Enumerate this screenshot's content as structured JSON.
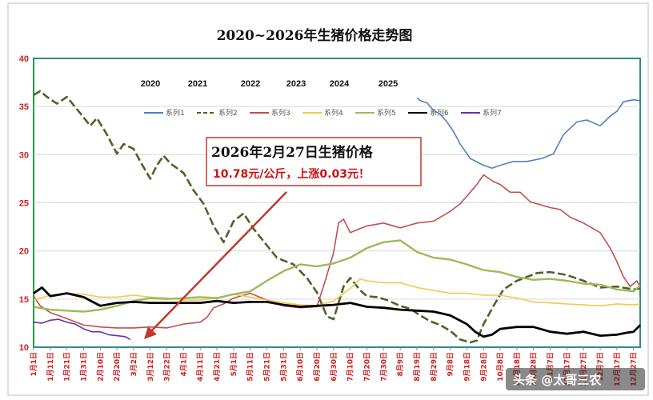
{
  "chart_data": {
    "type": "line",
    "title": "2020~2026年生猪价格走势图",
    "ylim": [
      10,
      40
    ],
    "y_ticks": [
      10,
      15,
      20,
      25,
      30,
      35,
      40
    ],
    "x_tick_labels": [
      "1月1日",
      "1月11日",
      "1月21日",
      "1月31日",
      "2月10日",
      "2月20日",
      "3月2日",
      "3月12日",
      "3月22日",
      "4月1日",
      "4月11日",
      "4月21日",
      "5月1日",
      "5月11日",
      "5月21日",
      "5月31日",
      "6月10日",
      "6月20日",
      "6月30日",
      "7月10日",
      "7月20日",
      "7月30日",
      "8月9日",
      "8月19日",
      "8月29日",
      "9月8日",
      "9月18日",
      "9月28日",
      "10月8日",
      "10月18日",
      "10月28日",
      "11月7日",
      "11月17日",
      "11月27日",
      "12月7日",
      "12月17日",
      "12月27日"
    ],
    "year_labels": [
      "2020",
      "2021",
      "2022",
      "2023",
      "2024",
      "2025"
    ],
    "legend": [
      "系列1",
      "系列2",
      "系列3",
      "系列4",
      "系列5",
      "系列6",
      "系列7"
    ],
    "series": [
      {
        "name": "系列1",
        "color": "#4f81bd",
        "dash": "solid",
        "x": [
          230,
          232,
          236,
          240,
          244,
          248,
          252,
          256,
          262,
          270,
          275,
          280,
          288,
          296,
          305,
          312,
          318,
          326,
          332,
          340,
          346,
          350,
          354,
          360,
          364
        ],
        "y": [
          35.9,
          35.6,
          35.4,
          34.6,
          34.2,
          33.4,
          32.4,
          31.1,
          29.6,
          28.9,
          28.6,
          28.9,
          29.3,
          29.3,
          29.6,
          30.1,
          32.1,
          33.4,
          33.6,
          33.0,
          34.0,
          34.5,
          35.5,
          35.7,
          35.6
        ]
      },
      {
        "name": "系列2",
        "color": "#4f6228",
        "dash": "dash",
        "x": [
          0,
          4,
          8,
          14,
          20,
          28,
          34,
          38,
          44,
          50,
          54,
          60,
          64,
          70,
          74,
          78,
          82,
          90,
          96,
          102,
          108,
          114,
          120,
          126,
          132,
          138,
          146,
          150,
          156,
          160,
          164,
          170,
          176,
          180,
          186,
          190,
          196,
          200,
          206,
          212,
          220,
          226,
          232,
          238,
          244,
          250,
          256,
          262,
          266,
          270,
          276,
          282,
          290,
          296,
          302,
          310,
          320,
          330,
          340,
          350,
          360,
          364
        ],
        "y": [
          36.2,
          36.6,
          36.0,
          35.3,
          36.0,
          34.3,
          33.0,
          33.8,
          32.1,
          30.1,
          31.1,
          30.6,
          29.3,
          27.5,
          28.9,
          29.9,
          29.1,
          28.1,
          26.3,
          24.9,
          22.6,
          20.9,
          23.1,
          23.9,
          22.3,
          21.0,
          19.3,
          19.0,
          18.6,
          17.9,
          17.2,
          15.7,
          13.2,
          12.9,
          16.3,
          17.2,
          15.9,
          15.3,
          15.2,
          14.9,
          14.3,
          14.0,
          13.3,
          12.7,
          12.3,
          11.7,
          10.8,
          10.5,
          10.7,
          12.4,
          14.3,
          16.0,
          16.9,
          17.3,
          17.7,
          17.8,
          17.5,
          16.9,
          16.2,
          16.3,
          16.0,
          16.1
        ]
      },
      {
        "name": "系列3",
        "color": "#c0504d",
        "dash": "solid",
        "x": [
          0,
          4,
          10,
          18,
          24,
          30,
          40,
          50,
          60,
          70,
          80,
          90,
          100,
          104,
          108,
          114,
          120,
          130,
          140,
          150,
          160,
          170,
          175,
          180,
          183,
          186,
          190,
          200,
          210,
          220,
          230,
          240,
          250,
          256,
          262,
          266,
          270,
          276,
          280,
          286,
          292,
          298,
          304,
          310,
          316,
          322,
          330,
          340,
          346,
          350,
          354,
          358,
          362,
          364
        ],
        "y": [
          15.3,
          14.3,
          13.6,
          13.1,
          12.7,
          12.3,
          12.1,
          12.0,
          12.0,
          12.1,
          12.0,
          12.4,
          12.6,
          13.1,
          14.1,
          14.5,
          15.1,
          15.6,
          14.9,
          14.3,
          14.1,
          14.2,
          16.9,
          19.8,
          22.9,
          23.3,
          21.9,
          22.6,
          22.9,
          22.4,
          22.9,
          23.1,
          24.1,
          24.9,
          26.1,
          26.9,
          27.9,
          27.2,
          26.9,
          26.1,
          26.1,
          25.1,
          24.8,
          24.5,
          24.3,
          23.5,
          22.9,
          21.9,
          20.3,
          18.9,
          17.3,
          16.3,
          16.9,
          16.3
        ]
      },
      {
        "name": "系列4",
        "color": "#f2c94c",
        "dash": "solid",
        "x": [
          0,
          10,
          20,
          30,
          40,
          50,
          60,
          70,
          80,
          90,
          100,
          110,
          120,
          130,
          140,
          150,
          160,
          170,
          180,
          190,
          196,
          200,
          210,
          220,
          230,
          240,
          250,
          260,
          270,
          280,
          290,
          300,
          310,
          320,
          330,
          340,
          350,
          360,
          364
        ],
        "y": [
          14.9,
          15.4,
          15.6,
          15.5,
          15.2,
          15.2,
          15.4,
          15.2,
          15.1,
          14.9,
          14.9,
          15.1,
          15.5,
          15.2,
          14.9,
          14.6,
          14.4,
          14.3,
          14.8,
          16.1,
          17.1,
          16.9,
          16.7,
          16.7,
          16.2,
          15.9,
          15.6,
          15.6,
          15.4,
          15.4,
          15.1,
          14.7,
          14.6,
          14.5,
          14.4,
          14.3,
          14.5,
          14.4,
          14.5
        ]
      },
      {
        "name": "系列5",
        "color": "#9bbb59",
        "dash": "solid",
        "x": [
          0,
          10,
          20,
          30,
          40,
          50,
          60,
          70,
          80,
          90,
          100,
          110,
          120,
          130,
          140,
          150,
          160,
          170,
          180,
          190,
          200,
          210,
          220,
          230,
          240,
          250,
          260,
          270,
          280,
          290,
          300,
          310,
          320,
          330,
          340,
          350,
          360,
          364
        ],
        "y": [
          14.2,
          13.9,
          13.8,
          13.7,
          13.9,
          14.3,
          14.8,
          15.1,
          15.0,
          15.1,
          15.2,
          15.1,
          15.5,
          15.8,
          16.9,
          17.9,
          18.6,
          18.4,
          18.7,
          19.3,
          20.3,
          20.9,
          21.1,
          19.9,
          19.3,
          19.1,
          18.6,
          18.0,
          17.8,
          17.3,
          17.0,
          17.1,
          16.9,
          16.6,
          16.5,
          16.0,
          15.8,
          16.4
        ]
      },
      {
        "name": "系列6",
        "color": "#000000",
        "dash": "solid",
        "x": [
          0,
          5,
          10,
          20,
          30,
          40,
          50,
          60,
          70,
          80,
          90,
          100,
          110,
          120,
          130,
          140,
          150,
          160,
          170,
          180,
          190,
          200,
          210,
          220,
          230,
          240,
          250,
          260,
          265,
          270,
          275,
          280,
          290,
          300,
          310,
          320,
          330,
          340,
          350,
          356,
          360,
          364
        ],
        "y": [
          15.6,
          16.2,
          15.3,
          15.6,
          15.2,
          14.3,
          14.6,
          14.7,
          14.6,
          14.6,
          14.6,
          14.6,
          14.8,
          14.6,
          14.7,
          14.7,
          14.4,
          14.2,
          14.3,
          14.4,
          14.6,
          14.2,
          14.1,
          13.9,
          13.8,
          13.7,
          13.3,
          12.4,
          11.6,
          11.1,
          11.3,
          11.9,
          12.1,
          12.1,
          11.6,
          11.4,
          11.6,
          11.2,
          11.3,
          11.5,
          11.6,
          12.3
        ]
      },
      {
        "name": "系列7",
        "color": "#7030a0",
        "dash": "solid",
        "x": [
          0,
          5,
          10,
          15,
          20,
          25,
          30,
          35,
          40,
          45,
          50,
          55,
          58
        ],
        "y": [
          12.6,
          12.5,
          12.8,
          12.9,
          12.6,
          12.4,
          11.9,
          11.6,
          11.6,
          11.3,
          11.2,
          11.1,
          10.8
        ]
      }
    ],
    "annotation": {
      "line1": "2026年2月27日生猪价格",
      "line2": "10.78元/公斤，上涨0.03元！"
    }
  },
  "watermark": "头条 @太哥三农"
}
